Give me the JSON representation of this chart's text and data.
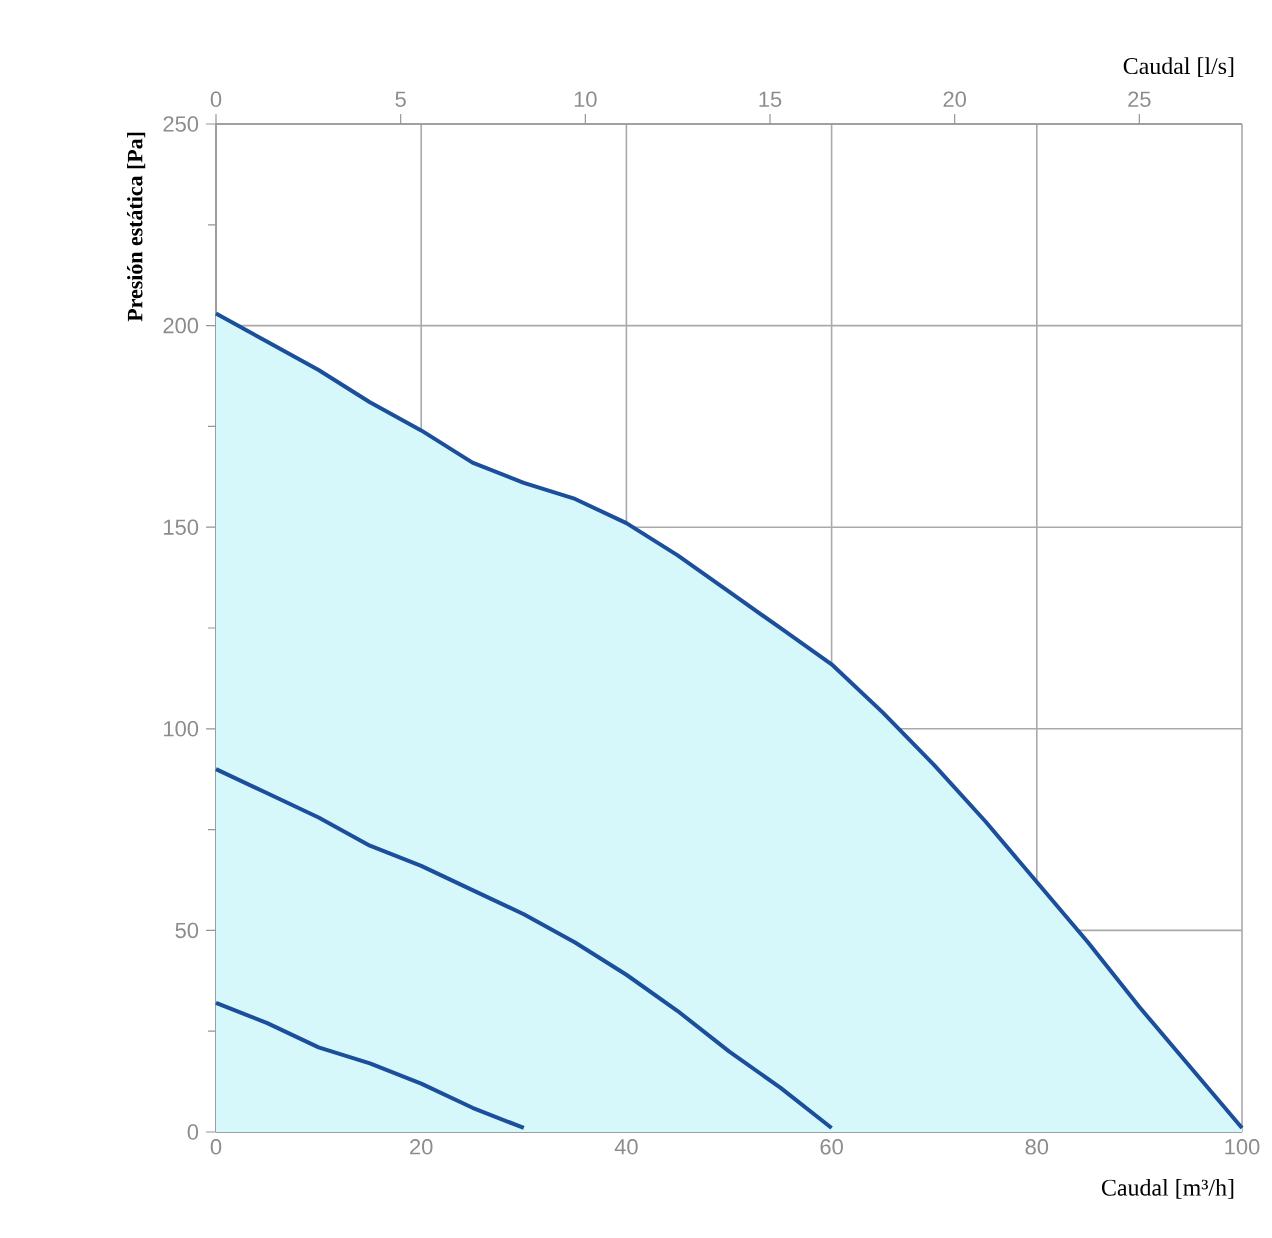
{
  "chart_data": {
    "type": "area",
    "xlabel": "Caudal [m³/h]",
    "ylabel": "Presión estática [Pa]",
    "x2label": "Caudal [l/s]",
    "xlim": [
      0,
      100
    ],
    "xticks": [
      0,
      20,
      40,
      60,
      80,
      100
    ],
    "ylim": [
      0,
      250
    ],
    "yticks": [
      0,
      {
        "value": 25,
        "label": null
      },
      50,
      {
        "value": 75,
        "label": null
      },
      100,
      {
        "value": 125,
        "label": null
      },
      150,
      {
        "value": 175,
        "label": null
      },
      200,
      {
        "value": 225,
        "label": null
      },
      250
    ],
    "x2lim": [
      0,
      27.78
    ],
    "x2ticks": [
      0,
      5,
      10,
      15,
      20,
      25
    ],
    "grid": true,
    "series": [
      {
        "color": "#1b4f9c",
        "x": [
          0,
          5,
          10,
          15,
          20,
          25,
          30,
          35,
          40,
          45,
          50,
          55,
          60,
          65,
          70,
          75,
          80,
          85,
          90,
          95,
          100
        ],
        "values": [
          203,
          196,
          189,
          181,
          174,
          166,
          161,
          157,
          151,
          143,
          134,
          125,
          116,
          104,
          91,
          77,
          62,
          47,
          31,
          16,
          1
        ]
      },
      {
        "type": "line",
        "color": "#1b4f9c",
        "x": [
          0,
          5,
          10,
          15,
          20,
          25,
          30,
          35,
          40,
          45,
          50,
          55,
          60
        ],
        "values": [
          90,
          84,
          78,
          71,
          66,
          60,
          54,
          47,
          39,
          30,
          20,
          11,
          1
        ]
      },
      {
        "type": "line",
        "color": "#1b4f9c",
        "x": [
          0,
          5,
          10,
          15,
          20,
          25,
          30
        ],
        "values": [
          32,
          27,
          21,
          17,
          12,
          6,
          1
        ]
      }
    ]
  }
}
